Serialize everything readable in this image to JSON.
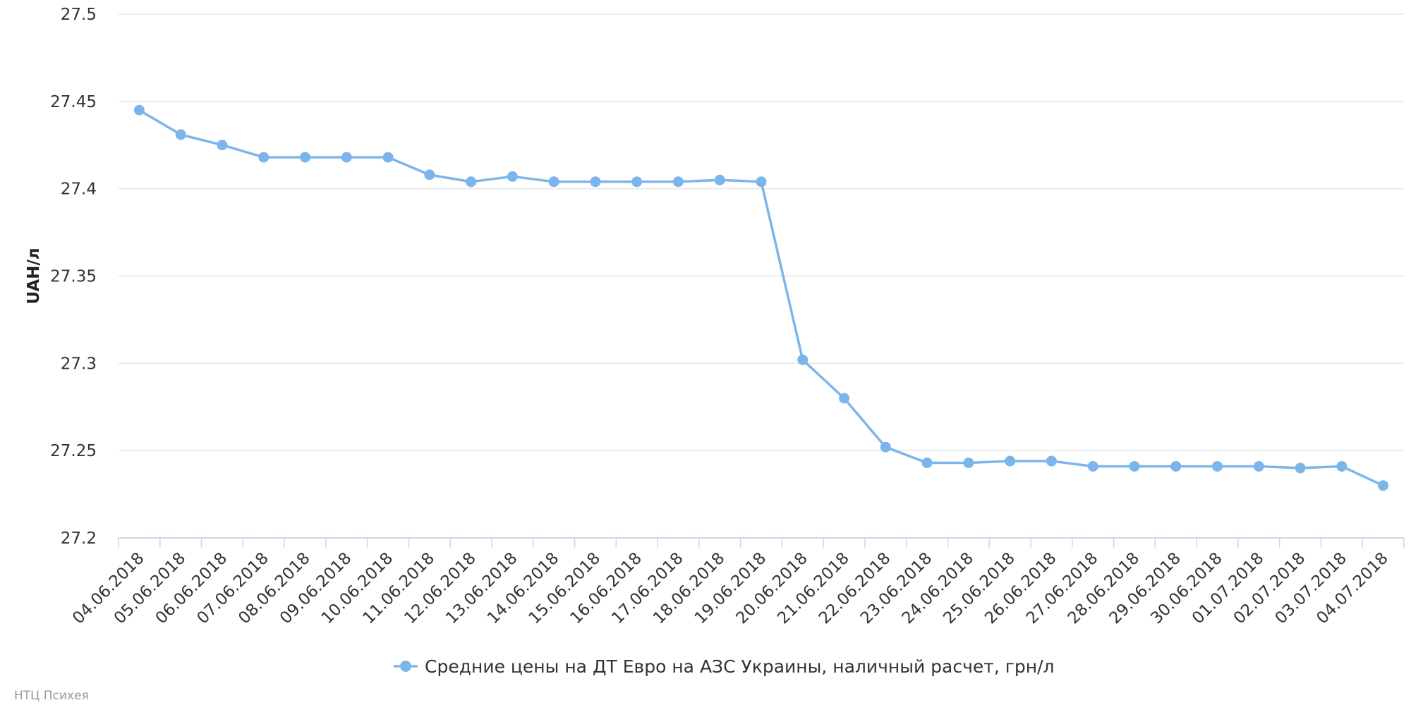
{
  "chart_data": {
    "type": "line",
    "title": "",
    "xlabel": "",
    "ylabel": "UAH/л",
    "ylim": [
      27.2,
      27.5
    ],
    "yticks": [
      "27.2",
      "27.25",
      "27.3",
      "27.35",
      "27.4",
      "27.45",
      "27.5"
    ],
    "grid": true,
    "legend_position": "bottom",
    "categories": [
      "04.06.2018",
      "05.06.2018",
      "06.06.2018",
      "07.06.2018",
      "08.06.2018",
      "09.06.2018",
      "10.06.2018",
      "11.06.2018",
      "12.06.2018",
      "13.06.2018",
      "14.06.2018",
      "15.06.2018",
      "16.06.2018",
      "17.06.2018",
      "18.06.2018",
      "19.06.2018",
      "20.06.2018",
      "21.06.2018",
      "22.06.2018",
      "23.06.2018",
      "24.06.2018",
      "25.06.2018",
      "26.06.2018",
      "27.06.2018",
      "28.06.2018",
      "29.06.2018",
      "30.06.2018",
      "01.07.2018",
      "02.07.2018",
      "03.07.2018",
      "04.07.2018"
    ],
    "series": [
      {
        "name": "Средние цены на ДТ Евро на АЗС Украины, наличный расчет, грн/л",
        "color": "#7cb5ec",
        "values": [
          27.445,
          27.431,
          27.425,
          27.418,
          27.418,
          27.418,
          27.418,
          27.408,
          27.404,
          27.407,
          27.404,
          27.404,
          27.404,
          27.404,
          27.405,
          27.404,
          27.302,
          27.28,
          27.252,
          27.243,
          27.243,
          27.244,
          27.244,
          27.241,
          27.241,
          27.241,
          27.241,
          27.241,
          27.24,
          27.241,
          27.23
        ]
      }
    ]
  },
  "credit": "НТЦ Психея"
}
